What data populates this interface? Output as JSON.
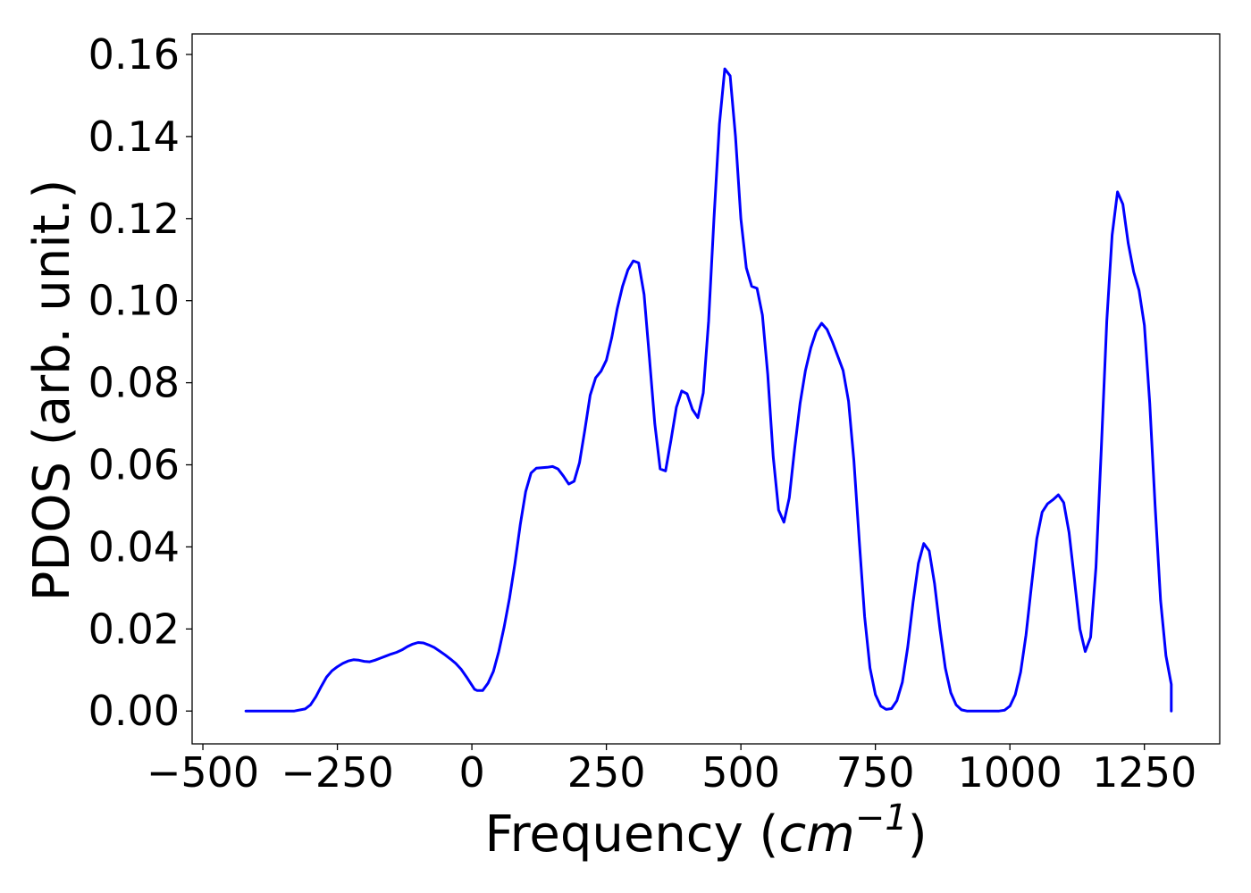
{
  "chart_data": {
    "type": "line",
    "title": "",
    "xlabel": {
      "prefix": "Frequency (",
      "unit_italic": "cm",
      "unit_exponent": "−1",
      "suffix": ")"
    },
    "ylabel": "PDOS (arb. unit.)",
    "xlim": [
      -520,
      1390
    ],
    "ylim": [
      -0.008,
      0.165
    ],
    "xticks": [
      -500,
      -250,
      0,
      250,
      500,
      750,
      1000,
      1250
    ],
    "xtick_labels": [
      "−500",
      "−250",
      "0",
      "250",
      "500",
      "750",
      "1000",
      "1250"
    ],
    "yticks": [
      0.0,
      0.02,
      0.04,
      0.06,
      0.08,
      0.1,
      0.12,
      0.14,
      0.16
    ],
    "ytick_labels": [
      "0.00",
      "0.02",
      "0.04",
      "0.06",
      "0.08",
      "0.10",
      "0.12",
      "0.14",
      "0.16"
    ],
    "grid": false,
    "series": [
      {
        "color": "#0000ff",
        "points": [
          [
            -420,
            0.0
          ],
          [
            -330,
            0.0
          ],
          [
            -310,
            0.0005
          ],
          [
            -300,
            0.0015
          ],
          [
            -290,
            0.0035
          ],
          [
            -280,
            0.006
          ],
          [
            -270,
            0.0083
          ],
          [
            -260,
            0.0098
          ],
          [
            -250,
            0.0108
          ],
          [
            -240,
            0.0116
          ],
          [
            -230,
            0.0122
          ],
          [
            -220,
            0.0125
          ],
          [
            -210,
            0.0124
          ],
          [
            -200,
            0.0121
          ],
          [
            -190,
            0.012
          ],
          [
            -180,
            0.0124
          ],
          [
            -170,
            0.0129
          ],
          [
            -160,
            0.0134
          ],
          [
            -150,
            0.0139
          ],
          [
            -140,
            0.0143
          ],
          [
            -130,
            0.0149
          ],
          [
            -120,
            0.0157
          ],
          [
            -110,
            0.0163
          ],
          [
            -100,
            0.0167
          ],
          [
            -90,
            0.0166
          ],
          [
            -80,
            0.0161
          ],
          [
            -70,
            0.0155
          ],
          [
            -60,
            0.0146
          ],
          [
            -50,
            0.0137
          ],
          [
            -40,
            0.0127
          ],
          [
            -30,
            0.0116
          ],
          [
            -20,
            0.0102
          ],
          [
            -10,
            0.0083
          ],
          [
            0,
            0.0063
          ],
          [
            5,
            0.0053
          ],
          [
            10,
            0.005
          ],
          [
            20,
            0.005
          ],
          [
            30,
            0.0068
          ],
          [
            40,
            0.0097
          ],
          [
            50,
            0.0145
          ],
          [
            60,
            0.0205
          ],
          [
            70,
            0.0275
          ],
          [
            80,
            0.036
          ],
          [
            90,
            0.0455
          ],
          [
            100,
            0.0535
          ],
          [
            110,
            0.058
          ],
          [
            120,
            0.0592
          ],
          [
            130,
            0.0593
          ],
          [
            140,
            0.0594
          ],
          [
            150,
            0.0596
          ],
          [
            160,
            0.059
          ],
          [
            170,
            0.0573
          ],
          [
            180,
            0.0553
          ],
          [
            190,
            0.056
          ],
          [
            200,
            0.0605
          ],
          [
            210,
            0.0685
          ],
          [
            220,
            0.077
          ],
          [
            230,
            0.0812
          ],
          [
            240,
            0.0828
          ],
          [
            250,
            0.0855
          ],
          [
            260,
            0.091
          ],
          [
            270,
            0.098
          ],
          [
            280,
            0.1035
          ],
          [
            290,
            0.1075
          ],
          [
            300,
            0.1097
          ],
          [
            310,
            0.1092
          ],
          [
            320,
            0.1015
          ],
          [
            330,
            0.086
          ],
          [
            340,
            0.07
          ],
          [
            350,
            0.059
          ],
          [
            360,
            0.0585
          ],
          [
            370,
            0.066
          ],
          [
            380,
            0.074
          ],
          [
            390,
            0.078
          ],
          [
            400,
            0.0773
          ],
          [
            410,
            0.0735
          ],
          [
            420,
            0.0715
          ],
          [
            430,
            0.0775
          ],
          [
            440,
            0.095
          ],
          [
            450,
            0.12
          ],
          [
            460,
            0.143
          ],
          [
            470,
            0.1565
          ],
          [
            480,
            0.1548
          ],
          [
            490,
            0.14
          ],
          [
            500,
            0.12
          ],
          [
            510,
            0.108
          ],
          [
            520,
            0.1035
          ],
          [
            530,
            0.103
          ],
          [
            540,
            0.0965
          ],
          [
            550,
            0.082
          ],
          [
            560,
            0.062
          ],
          [
            570,
            0.049
          ],
          [
            580,
            0.046
          ],
          [
            590,
            0.052
          ],
          [
            600,
            0.064
          ],
          [
            610,
            0.075
          ],
          [
            620,
            0.083
          ],
          [
            630,
            0.0885
          ],
          [
            640,
            0.0925
          ],
          [
            650,
            0.0945
          ],
          [
            660,
            0.093
          ],
          [
            670,
            0.09
          ],
          [
            680,
            0.0865
          ],
          [
            690,
            0.083
          ],
          [
            700,
            0.0755
          ],
          [
            710,
            0.061
          ],
          [
            720,
            0.0415
          ],
          [
            730,
            0.023
          ],
          [
            740,
            0.0105
          ],
          [
            750,
            0.004
          ],
          [
            760,
            0.0012
          ],
          [
            770,
            0.0004
          ],
          [
            780,
            0.0006
          ],
          [
            790,
            0.0025
          ],
          [
            800,
            0.007
          ],
          [
            810,
            0.0155
          ],
          [
            820,
            0.0265
          ],
          [
            830,
            0.036
          ],
          [
            840,
            0.0408
          ],
          [
            850,
            0.039
          ],
          [
            860,
            0.031
          ],
          [
            870,
            0.02
          ],
          [
            880,
            0.0105
          ],
          [
            890,
            0.0045
          ],
          [
            900,
            0.0015
          ],
          [
            910,
            0.0003
          ],
          [
            920,
            0.0
          ],
          [
            980,
            0.0
          ],
          [
            990,
            0.0002
          ],
          [
            1000,
            0.0012
          ],
          [
            1010,
            0.004
          ],
          [
            1020,
            0.0095
          ],
          [
            1030,
            0.0185
          ],
          [
            1040,
            0.0305
          ],
          [
            1050,
            0.042
          ],
          [
            1060,
            0.0485
          ],
          [
            1070,
            0.0505
          ],
          [
            1080,
            0.0515
          ],
          [
            1090,
            0.0527
          ],
          [
            1100,
            0.0508
          ],
          [
            1110,
            0.0435
          ],
          [
            1120,
            0.032
          ],
          [
            1130,
            0.02
          ],
          [
            1140,
            0.0145
          ],
          [
            1150,
            0.018
          ],
          [
            1160,
            0.035
          ],
          [
            1170,
            0.064
          ],
          [
            1180,
            0.095
          ],
          [
            1190,
            0.116
          ],
          [
            1200,
            0.1265
          ],
          [
            1210,
            0.1235
          ],
          [
            1220,
            0.114
          ],
          [
            1230,
            0.107
          ],
          [
            1240,
            0.1025
          ],
          [
            1250,
            0.094
          ],
          [
            1260,
            0.075
          ],
          [
            1270,
            0.05
          ],
          [
            1280,
            0.027
          ],
          [
            1290,
            0.0135
          ],
          [
            1300,
            0.0065
          ],
          [
            1310,
            0.003
          ],
          [
            1320,
            0.001
          ],
          [
            1330,
            0.0003
          ],
          [
            1340,
            0.0
          ],
          [
            1390,
            0.0
          ]
        ]
      }
    ]
  }
}
